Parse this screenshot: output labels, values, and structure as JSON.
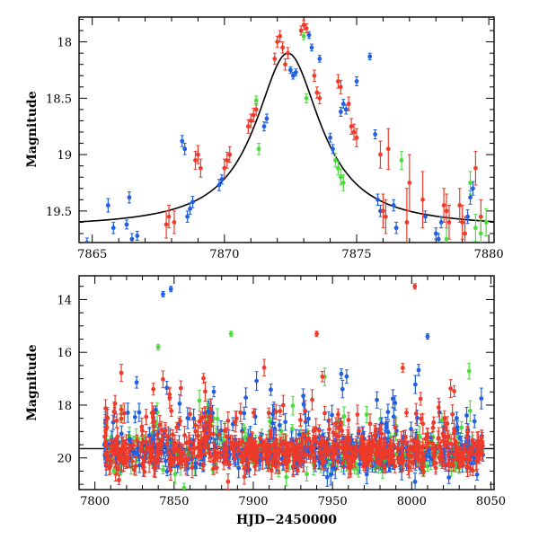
{
  "chart_data": [
    {
      "type": "scatter",
      "panel": "top",
      "ylabel": "Magnitude",
      "xlabel": "",
      "xlim": [
        7864.5,
        7880.2
      ],
      "ylim": [
        19.78,
        17.78
      ],
      "y_inverted": true,
      "x_ticks": [
        7865,
        7870,
        7875,
        7880
      ],
      "x_tick_labels": [
        "7865",
        "7870",
        "7875",
        "7880"
      ],
      "y_ticks": [
        18,
        18.5,
        19,
        19.5
      ],
      "y_tick_labels": [
        "18",
        "18.5",
        "19",
        "19.5"
      ],
      "colors": {
        "blue": "#1f5fe0",
        "red": "#ee3a2a",
        "green": "#4cdc3c",
        "model": "#000000"
      },
      "model_curve": {
        "description_type": "lorentzian",
        "baseline": 19.65,
        "peak": 18.1,
        "t0": 7872.4,
        "width": 1.5
      },
      "series": [
        {
          "color": "blue",
          "points": [
            [
              7864.8,
              19.78,
              0.04
            ],
            [
              7865.6,
              19.45,
              0.06
            ],
            [
              7865.8,
              19.65,
              0.05
            ],
            [
              7866.3,
              19.62,
              0.04
            ],
            [
              7866.4,
              19.38,
              0.05
            ],
            [
              7866.5,
              19.75,
              0.05
            ],
            [
              7866.7,
              19.72,
              0.04
            ],
            [
              7868.4,
              18.88,
              0.05
            ],
            [
              7868.5,
              18.95,
              0.05
            ],
            [
              7868.6,
              19.55,
              0.05
            ],
            [
              7868.7,
              19.48,
              0.05
            ],
            [
              7868.8,
              19.42,
              0.05
            ],
            [
              7869.8,
              19.27,
              0.05
            ],
            [
              7869.9,
              19.22,
              0.04
            ],
            [
              7871.5,
              18.75,
              0.04
            ],
            [
              7871.6,
              18.68,
              0.04
            ],
            [
              7872.5,
              18.25,
              0.03
            ],
            [
              7872.6,
              18.3,
              0.03
            ],
            [
              7872.7,
              18.27,
              0.03
            ],
            [
              7873.2,
              17.94,
              0.03
            ],
            [
              7873.3,
              18.05,
              0.03
            ],
            [
              7873.6,
              18.15,
              0.03
            ],
            [
              7874.0,
              18.85,
              0.04
            ],
            [
              7874.1,
              18.95,
              0.04
            ],
            [
              7874.4,
              18.62,
              0.04
            ],
            [
              7874.5,
              18.55,
              0.04
            ],
            [
              7874.6,
              18.6,
              0.04
            ],
            [
              7875.0,
              18.35,
              0.04
            ],
            [
              7875.5,
              18.13,
              0.03
            ],
            [
              7875.7,
              18.82,
              0.04
            ],
            [
              7875.8,
              19.4,
              0.05
            ],
            [
              7875.9,
              19.5,
              0.05
            ],
            [
              7876.4,
              19.45,
              0.05
            ],
            [
              7876.5,
              19.65,
              0.05
            ],
            [
              7877.6,
              19.55,
              0.05
            ],
            [
              7878.0,
              19.7,
              0.05
            ],
            [
              7878.1,
              19.75,
              0.05
            ],
            [
              7878.2,
              19.6,
              0.05
            ],
            [
              7879.2,
              19.55,
              0.06
            ],
            [
              7879.3,
              19.38,
              0.06
            ],
            [
              7879.4,
              19.3,
              0.06
            ]
          ]
        },
        {
          "color": "red",
          "points": [
            [
              7867.8,
              19.62,
              0.12
            ],
            [
              7867.9,
              19.55,
              0.1
            ],
            [
              7868.1,
              19.6,
              0.1
            ],
            [
              7868.9,
              19.05,
              0.08
            ],
            [
              7869.0,
              19.0,
              0.08
            ],
            [
              7869.1,
              19.12,
              0.08
            ],
            [
              7870.0,
              19.12,
              0.08
            ],
            [
              7870.1,
              19.05,
              0.07
            ],
            [
              7870.2,
              19.0,
              0.07
            ],
            [
              7870.9,
              18.75,
              0.06
            ],
            [
              7871.0,
              18.7,
              0.06
            ],
            [
              7871.1,
              18.65,
              0.06
            ],
            [
              7871.2,
              18.6,
              0.05
            ],
            [
              7871.9,
              18.15,
              0.05
            ],
            [
              7872.0,
              18.0,
              0.05
            ],
            [
              7872.1,
              17.95,
              0.05
            ],
            [
              7872.2,
              18.05,
              0.05
            ],
            [
              7872.3,
              18.2,
              0.05
            ],
            [
              7872.4,
              18.1,
              0.05
            ],
            [
              7872.9,
              17.9,
              0.04
            ],
            [
              7873.0,
              17.85,
              0.04
            ],
            [
              7873.1,
              17.88,
              0.04
            ],
            [
              7873.4,
              18.3,
              0.05
            ],
            [
              7873.5,
              18.45,
              0.05
            ],
            [
              7873.6,
              18.5,
              0.05
            ],
            [
              7874.3,
              18.35,
              0.06
            ],
            [
              7874.4,
              18.4,
              0.06
            ],
            [
              7874.7,
              18.55,
              0.06
            ],
            [
              7874.8,
              18.75,
              0.07
            ],
            [
              7874.9,
              18.8,
              0.07
            ],
            [
              7875.0,
              18.85,
              0.08
            ],
            [
              7875.9,
              19.0,
              0.12
            ],
            [
              7876.0,
              19.5,
              0.15
            ],
            [
              7876.1,
              19.55,
              0.15
            ],
            [
              7876.2,
              18.95,
              0.18
            ],
            [
              7876.9,
              19.6,
              0.3
            ],
            [
              7877.0,
              19.25,
              0.25
            ],
            [
              7877.5,
              19.4,
              0.25
            ],
            [
              7878.3,
              19.45,
              0.15
            ],
            [
              7878.4,
              19.5,
              0.15
            ],
            [
              7878.5,
              19.6,
              0.15
            ],
            [
              7878.9,
              19.45,
              0.15
            ],
            [
              7879.0,
              19.6,
              0.15
            ],
            [
              7879.1,
              19.7,
              0.15
            ],
            [
              7879.5,
              19.12,
              0.15
            ],
            [
              7879.7,
              19.55,
              0.15
            ]
          ]
        },
        {
          "color": "green",
          "points": [
            [
              7871.2,
              18.52,
              0.04
            ],
            [
              7871.3,
              18.95,
              0.05
            ],
            [
              7873.0,
              17.95,
              0.03
            ],
            [
              7873.1,
              18.5,
              0.04
            ],
            [
              7874.2,
              19.05,
              0.06
            ],
            [
              7874.3,
              19.12,
              0.06
            ],
            [
              7874.4,
              19.2,
              0.07
            ],
            [
              7874.5,
              19.25,
              0.07
            ],
            [
              7876.7,
              19.05,
              0.08
            ],
            [
              7878.4,
              19.75,
              0.1
            ],
            [
              7879.3,
              19.25,
              0.1
            ],
            [
              7879.5,
              19.65,
              0.12
            ],
            [
              7879.7,
              19.7,
              0.12
            ],
            [
              7879.9,
              19.6,
              0.12
            ]
          ]
        }
      ]
    },
    {
      "type": "scatter",
      "panel": "bottom",
      "ylabel": "Magnitude",
      "xlabel": "HJD−2450000",
      "xlim": [
        7790,
        8052
      ],
      "ylim": [
        21.2,
        13.1
      ],
      "y_inverted": true,
      "x_ticks": [
        7800,
        7850,
        7900,
        7950,
        8000,
        8050
      ],
      "x_tick_labels": [
        "7800",
        "7850",
        "7900",
        "7950",
        "8000",
        "8050"
      ],
      "y_ticks": [
        14,
        16,
        18,
        20
      ],
      "y_tick_labels": [
        "14",
        "16",
        "18",
        "20"
      ],
      "colors": {
        "blue": "#1f5fe0",
        "red": "#ee3a2a",
        "green": "#4cdc3c",
        "model": "#000000"
      },
      "baseline_magnitude": 19.65,
      "observation_range": [
        7806,
        8045
      ],
      "notable_points": [
        {
          "color": "blue",
          "x": 7843,
          "y": 13.8
        },
        {
          "color": "blue",
          "x": 7848,
          "y": 13.6
        },
        {
          "color": "red",
          "x": 8002,
          "y": 13.5
        },
        {
          "color": "blue",
          "x": 8010,
          "y": 15.4
        },
        {
          "color": "red",
          "x": 7940,
          "y": 15.3
        },
        {
          "color": "green",
          "x": 7886,
          "y": 15.3
        },
        {
          "color": "green",
          "x": 7840,
          "y": 15.8
        },
        {
          "color": "green",
          "x": 7812,
          "y": 20.5
        }
      ]
    }
  ]
}
